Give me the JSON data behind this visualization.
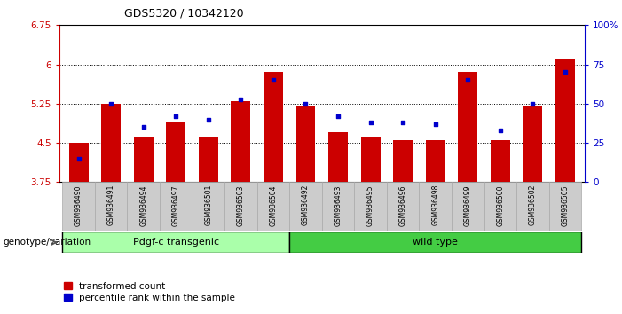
{
  "title": "GDS5320 / 10342120",
  "categories": [
    "GSM936490",
    "GSM936491",
    "GSM936494",
    "GSM936497",
    "GSM936501",
    "GSM936503",
    "GSM936504",
    "GSM936492",
    "GSM936493",
    "GSM936495",
    "GSM936496",
    "GSM936498",
    "GSM936499",
    "GSM936500",
    "GSM936502",
    "GSM936505"
  ],
  "red_values": [
    4.5,
    5.25,
    4.6,
    4.9,
    4.6,
    5.3,
    5.85,
    5.2,
    4.7,
    4.6,
    4.55,
    4.55,
    5.85,
    4.55,
    5.2,
    6.1
  ],
  "blue_values_pct": [
    15,
    50,
    35,
    42,
    40,
    53,
    65,
    50,
    42,
    38,
    38,
    37,
    65,
    33,
    50,
    70
  ],
  "ylim_left": [
    3.75,
    6.75
  ],
  "ylim_right": [
    0,
    100
  ],
  "yticks_left": [
    3.75,
    4.5,
    5.25,
    6.0,
    6.75
  ],
  "yticks_right": [
    0,
    25,
    50,
    75,
    100
  ],
  "ytick_labels_left": [
    "3.75",
    "4.5",
    "5.25",
    "6",
    "6.75"
  ],
  "ytick_labels_right": [
    "0",
    "25",
    "50",
    "75",
    "100%"
  ],
  "hlines": [
    4.5,
    5.25,
    6.0
  ],
  "group1_label": "Pdgf-c transgenic",
  "group2_label": "wild type",
  "group1_count": 7,
  "group2_count": 9,
  "bar_color": "#cc0000",
  "dot_color": "#0000cc",
  "group1_bg": "#aaffaa",
  "group2_bg": "#44cc44",
  "bar_bottom": 3.75,
  "legend_red": "transformed count",
  "legend_blue": "percentile rank within the sample",
  "genotype_label": "genotype/variation",
  "bar_width": 0.6,
  "tick_label_color_left": "#cc0000",
  "tick_label_color_right": "#0000cc"
}
